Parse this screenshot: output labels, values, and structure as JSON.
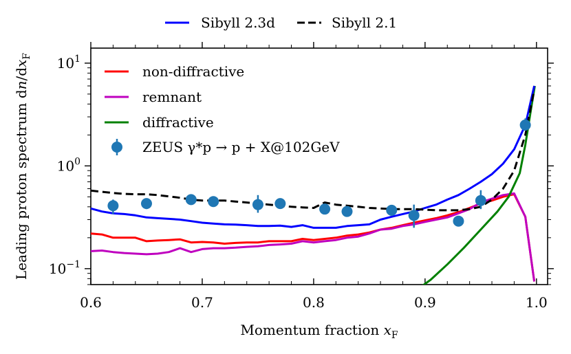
{
  "chart_data": {
    "type": "line",
    "title": "",
    "xlabel": "Momentum fraction x_F",
    "xlabel_main": "Momentum fraction ",
    "xlabel_var": "x",
    "xlabel_sub": "F",
    "ylabel": "Leading proton spectrum dn/dx_F",
    "ylabel_main": "Leading proton spectrum d",
    "ylabel_var1": "n",
    "ylabel_mid": "/d",
    "ylabel_var2": "x",
    "ylabel_sub": "F",
    "xlim": [
      0.6,
      1.01
    ],
    "ylim": [
      0.07,
      14
    ],
    "yscale": "log",
    "x_ticks": [
      {
        "value": 0.6,
        "label": "0.6"
      },
      {
        "value": 0.7,
        "label": "0.7"
      },
      {
        "value": 0.8,
        "label": "0.8"
      },
      {
        "value": 0.9,
        "label": "0.9"
      },
      {
        "value": 1.0,
        "label": "1.0"
      }
    ],
    "y_ticks": [
      {
        "value": 0.1,
        "base": "10",
        "exp": "−1"
      },
      {
        "value": 1,
        "base": "10",
        "exp": "0"
      },
      {
        "value": 10,
        "base": "10",
        "exp": "1"
      }
    ],
    "series": [
      {
        "name": "non-diffractive",
        "color": "#ff0000",
        "dash": "solid",
        "legend": "inner",
        "x": [
          0.6,
          0.61,
          0.62,
          0.63,
          0.64,
          0.65,
          0.66,
          0.67,
          0.68,
          0.69,
          0.7,
          0.71,
          0.72,
          0.73,
          0.74,
          0.75,
          0.76,
          0.77,
          0.78,
          0.79,
          0.8,
          0.81,
          0.82,
          0.83,
          0.84,
          0.85,
          0.86,
          0.87,
          0.88,
          0.89,
          0.9,
          0.91,
          0.92,
          0.93,
          0.94,
          0.95,
          0.96,
          0.97,
          0.98,
          0.99,
          0.998
        ],
        "values": [
          0.22,
          0.215,
          0.2,
          0.2,
          0.2,
          0.185,
          0.188,
          0.19,
          0.193,
          0.18,
          0.182,
          0.18,
          0.175,
          0.178,
          0.18,
          0.18,
          0.185,
          0.185,
          0.185,
          0.195,
          0.19,
          0.195,
          0.2,
          0.21,
          0.215,
          0.225,
          0.24,
          0.25,
          0.265,
          0.28,
          0.295,
          0.31,
          0.33,
          0.355,
          0.39,
          0.43,
          0.46,
          0.5,
          0.53,
          0.32,
          0.075
        ]
      },
      {
        "name": "remnant",
        "color": "#bf00bf",
        "dash": "solid",
        "legend": "inner",
        "x": [
          0.6,
          0.61,
          0.62,
          0.63,
          0.64,
          0.65,
          0.66,
          0.67,
          0.68,
          0.69,
          0.7,
          0.71,
          0.72,
          0.73,
          0.74,
          0.75,
          0.76,
          0.77,
          0.78,
          0.79,
          0.8,
          0.81,
          0.82,
          0.83,
          0.84,
          0.85,
          0.86,
          0.87,
          0.88,
          0.89,
          0.9,
          0.91,
          0.92,
          0.93,
          0.94,
          0.95,
          0.96,
          0.97,
          0.98,
          0.99,
          0.998
        ],
        "values": [
          0.148,
          0.15,
          0.145,
          0.142,
          0.14,
          0.138,
          0.14,
          0.145,
          0.158,
          0.145,
          0.155,
          0.158,
          0.158,
          0.16,
          0.163,
          0.165,
          0.17,
          0.172,
          0.175,
          0.185,
          0.18,
          0.185,
          0.19,
          0.2,
          0.205,
          0.22,
          0.24,
          0.245,
          0.26,
          0.27,
          0.285,
          0.3,
          0.315,
          0.345,
          0.38,
          0.44,
          0.48,
          0.52,
          0.54,
          0.32,
          0.075
        ]
      },
      {
        "name": "diffractive",
        "color": "#008000",
        "dash": "solid",
        "legend": "inner",
        "x": [
          0.895,
          0.905,
          0.92,
          0.935,
          0.95,
          0.965,
          0.975,
          0.985,
          0.99,
          0.995,
          0.9985
        ],
        "values": [
          0.065,
          0.078,
          0.11,
          0.16,
          0.24,
          0.36,
          0.5,
          0.85,
          1.6,
          3.5,
          6.0
        ]
      },
      {
        "name": "Sibyll 2.3d",
        "color": "#0000ff",
        "dash": "solid",
        "legend": "top",
        "x": [
          0.6,
          0.61,
          0.62,
          0.63,
          0.64,
          0.65,
          0.66,
          0.67,
          0.68,
          0.69,
          0.7,
          0.71,
          0.72,
          0.73,
          0.74,
          0.75,
          0.76,
          0.77,
          0.78,
          0.79,
          0.8,
          0.81,
          0.82,
          0.83,
          0.84,
          0.85,
          0.86,
          0.87,
          0.88,
          0.89,
          0.9,
          0.91,
          0.92,
          0.93,
          0.94,
          0.95,
          0.96,
          0.97,
          0.98,
          0.99,
          0.998
        ],
        "values": [
          0.385,
          0.36,
          0.345,
          0.34,
          0.33,
          0.315,
          0.31,
          0.305,
          0.3,
          0.29,
          0.28,
          0.275,
          0.27,
          0.268,
          0.265,
          0.26,
          0.26,
          0.262,
          0.255,
          0.265,
          0.25,
          0.25,
          0.25,
          0.26,
          0.265,
          0.27,
          0.3,
          0.32,
          0.34,
          0.36,
          0.39,
          0.42,
          0.47,
          0.52,
          0.6,
          0.7,
          0.83,
          1.05,
          1.45,
          2.5,
          6.0
        ]
      },
      {
        "name": "Sibyll 2.1",
        "color": "#000000",
        "dash": "dashed",
        "legend": "top",
        "x": [
          0.6,
          0.61,
          0.62,
          0.63,
          0.64,
          0.65,
          0.66,
          0.67,
          0.68,
          0.69,
          0.7,
          0.71,
          0.72,
          0.73,
          0.74,
          0.75,
          0.76,
          0.77,
          0.78,
          0.79,
          0.8,
          0.81,
          0.82,
          0.83,
          0.84,
          0.85,
          0.86,
          0.87,
          0.88,
          0.89,
          0.9,
          0.91,
          0.92,
          0.93,
          0.94,
          0.95,
          0.96,
          0.97,
          0.98,
          0.99,
          0.998
        ],
        "values": [
          0.575,
          0.56,
          0.545,
          0.535,
          0.53,
          0.53,
          0.52,
          0.505,
          0.49,
          0.47,
          0.46,
          0.46,
          0.46,
          0.45,
          0.44,
          0.43,
          0.42,
          0.41,
          0.4,
          0.395,
          0.39,
          0.44,
          0.42,
          0.41,
          0.4,
          0.39,
          0.385,
          0.38,
          0.38,
          0.38,
          0.375,
          0.37,
          0.37,
          0.37,
          0.38,
          0.4,
          0.47,
          0.6,
          0.9,
          2.0,
          5.5
        ]
      }
    ],
    "data_points": {
      "name": "ZEUS γ*p → p + X@102GeV",
      "color": "#1f77b4",
      "x": [
        0.62,
        0.65,
        0.69,
        0.71,
        0.75,
        0.77,
        0.81,
        0.83,
        0.87,
        0.89,
        0.93,
        0.95,
        0.99
      ],
      "y": [
        0.41,
        0.43,
        0.47,
        0.45,
        0.42,
        0.43,
        0.38,
        0.36,
        0.37,
        0.33,
        0.29,
        0.46,
        2.5
      ],
      "y_low": [
        0.34,
        0.38,
        0.44,
        0.42,
        0.35,
        0.41,
        0.35,
        0.33,
        0.34,
        0.25,
        0.28,
        0.38,
        2.2
      ],
      "y_high": [
        0.47,
        0.48,
        0.5,
        0.49,
        0.52,
        0.46,
        0.41,
        0.39,
        0.4,
        0.42,
        0.3,
        0.58,
        2.9
      ]
    },
    "legend_top": [
      {
        "label": "Sibyll 2.3d",
        "color": "#0000ff",
        "dash": "solid"
      },
      {
        "label": "Sibyll 2.1",
        "color": "#000000",
        "dash": "dashed"
      }
    ],
    "legend_inner": [
      {
        "label": "non-diffractive",
        "color": "#ff0000",
        "kind": "line"
      },
      {
        "label": "remnant",
        "color": "#bf00bf",
        "kind": "line"
      },
      {
        "label": "diffractive",
        "color": "#008000",
        "kind": "line"
      },
      {
        "label": "ZEUS γ*p → p + X@102GeV",
        "color": "#1f77b4",
        "kind": "point"
      }
    ],
    "legend_placement": "top-left"
  }
}
